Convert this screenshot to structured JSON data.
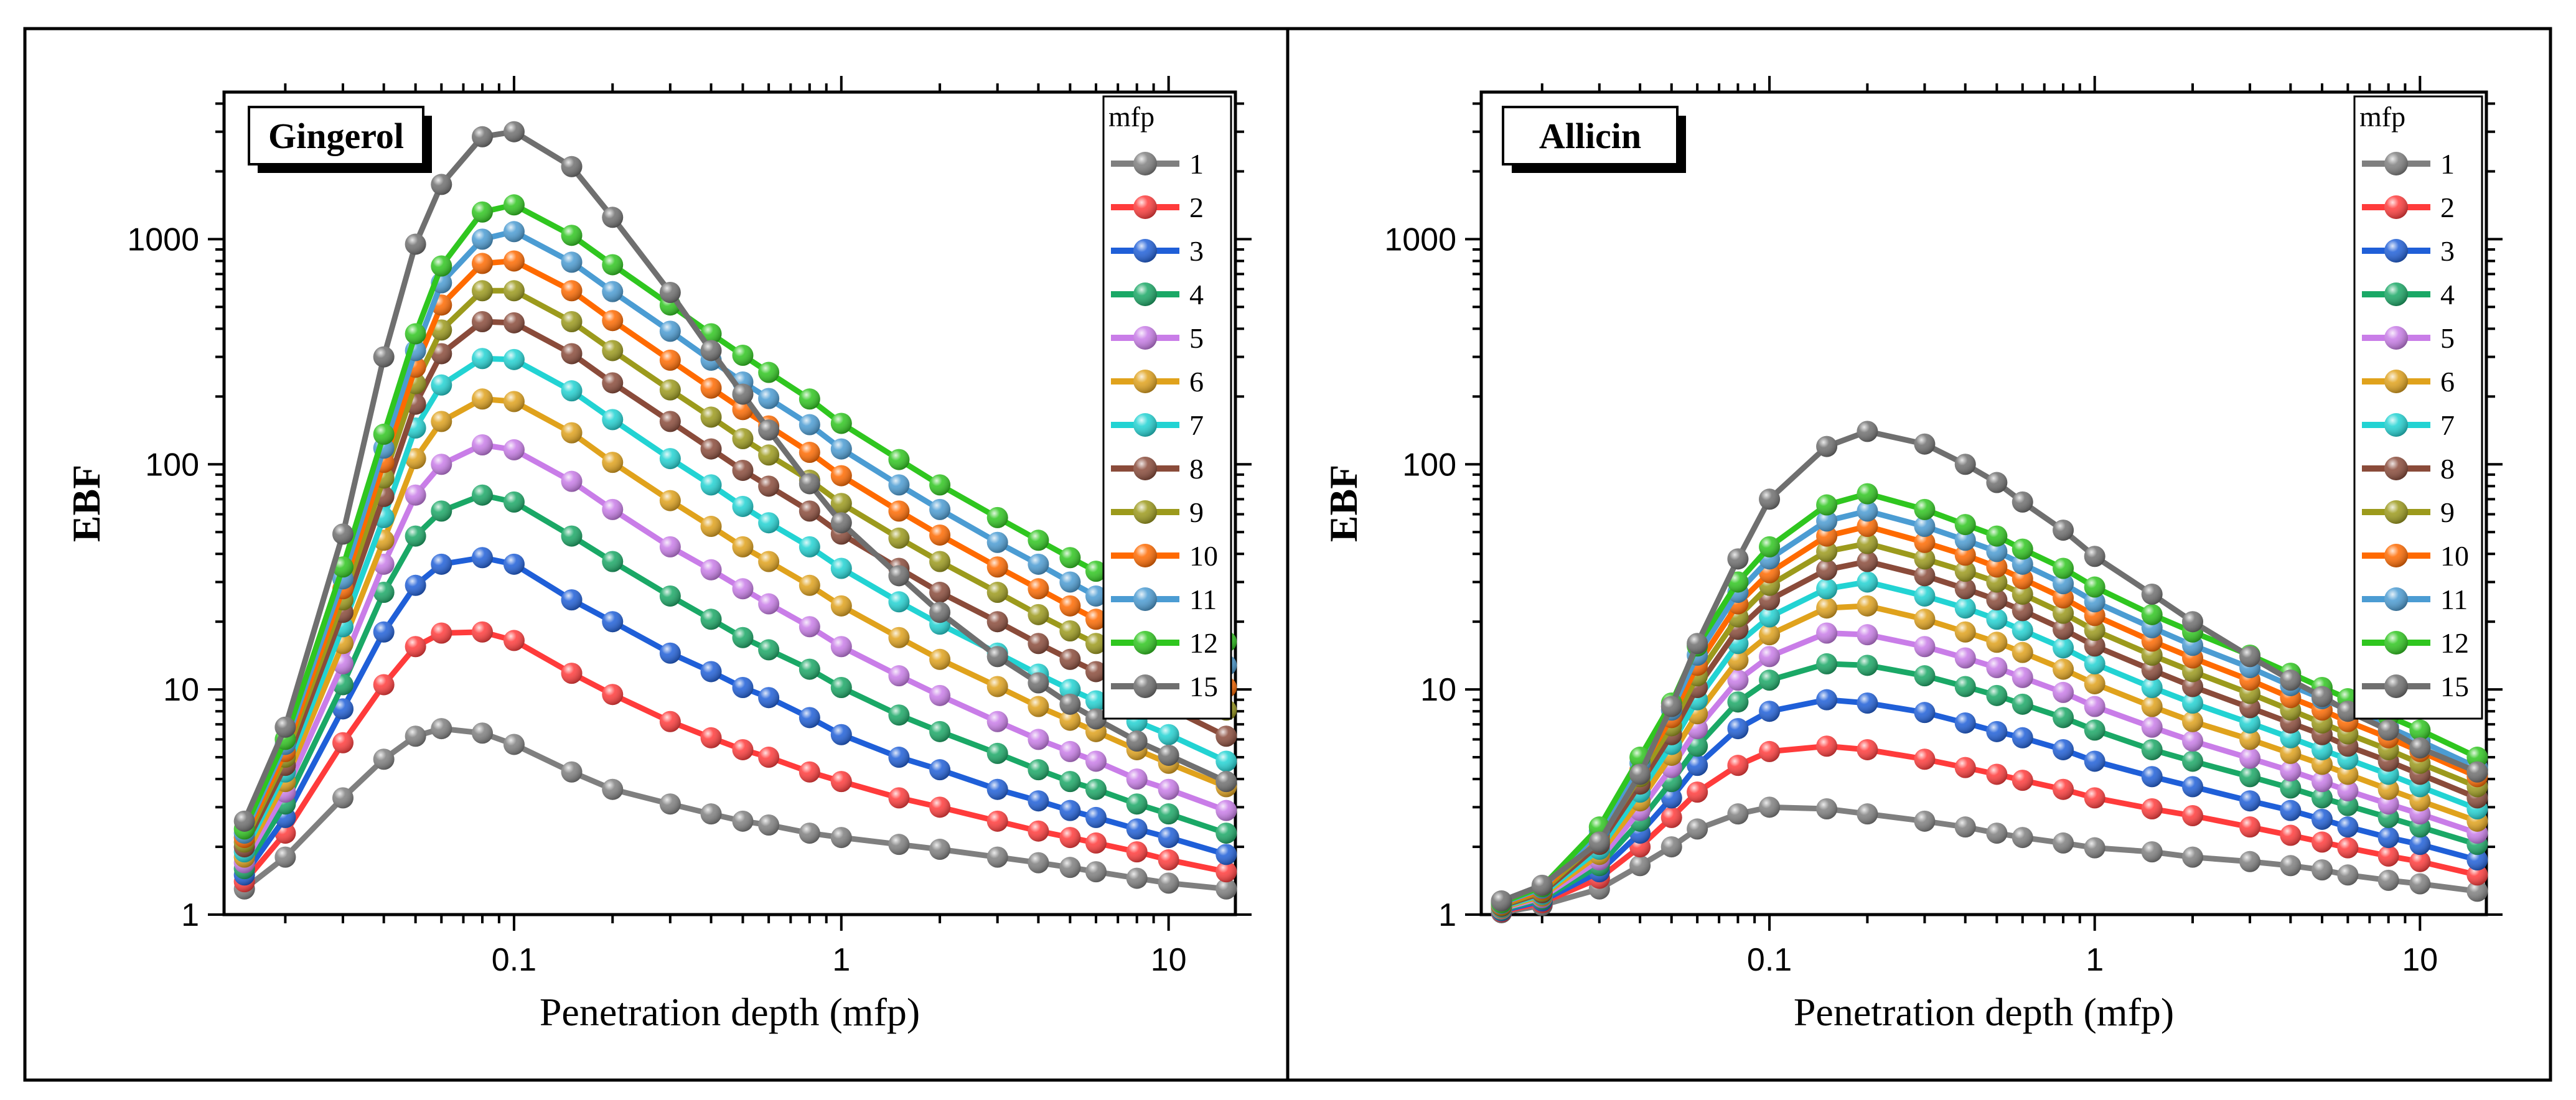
{
  "figure": {
    "panels": [
      "Gingerol",
      "Allicin"
    ]
  },
  "colors": {
    "1": "#7f7f7f",
    "2": "#ff3b3b",
    "3": "#1f5fd8",
    "4": "#1aa866",
    "5": "#c97de8",
    "6": "#e0a21c",
    "7": "#22d3d3",
    "8": "#8a4b3a",
    "9": "#9c9a1c",
    "10": "#ff6a00",
    "11": "#4b9cd3",
    "12": "#2fc61f",
    "15": "#6f6f6f"
  },
  "chart_data": [
    {
      "type": "line",
      "title": "Gingerol",
      "xlabel": "Penetration depth (mfp)",
      "ylabel": "EBF",
      "xscale": "log",
      "yscale": "log",
      "xlim": [
        0.013,
        16
      ],
      "ylim": [
        1,
        4500
      ],
      "xticks": [
        0.1,
        1,
        10
      ],
      "xtick_labels": [
        "0.1",
        "1",
        "10"
      ],
      "yticks": [
        1,
        10,
        100,
        1000
      ],
      "ytick_labels": [
        "1",
        "10",
        "100",
        "1000"
      ],
      "legend": {
        "title": "mfp",
        "placement": "top-right",
        "entries": [
          "1",
          "2",
          "3",
          "4",
          "5",
          "6",
          "7",
          "8",
          "9",
          "10",
          "11",
          "12",
          "15"
        ]
      },
      "x": [
        0.015,
        0.02,
        0.03,
        0.04,
        0.05,
        0.06,
        0.08,
        0.1,
        0.15,
        0.2,
        0.3,
        0.4,
        0.5,
        0.6,
        0.8,
        1,
        1.5,
        2,
        3,
        4,
        5,
        6,
        8,
        10,
        15
      ],
      "series": [
        {
          "name": "1",
          "values": [
            1.3,
            1.8,
            3.3,
            4.9,
            6.2,
            6.7,
            6.4,
            5.7,
            4.3,
            3.6,
            3.1,
            2.8,
            2.6,
            2.5,
            2.3,
            2.2,
            2.05,
            1.95,
            1.8,
            1.7,
            1.62,
            1.55,
            1.45,
            1.38,
            1.3
          ]
        },
        {
          "name": "2",
          "values": [
            1.4,
            2.3,
            5.8,
            10.5,
            15.5,
            17.8,
            18,
            16.5,
            11.8,
            9.5,
            7.2,
            6.1,
            5.4,
            5.0,
            4.3,
            3.9,
            3.3,
            3.0,
            2.6,
            2.35,
            2.2,
            2.08,
            1.9,
            1.75,
            1.55
          ]
        },
        {
          "name": "3",
          "values": [
            1.5,
            2.7,
            8.2,
            18,
            29,
            36,
            38.5,
            36,
            25,
            20,
            14.5,
            12,
            10.2,
            9.2,
            7.5,
            6.3,
            5.0,
            4.4,
            3.6,
            3.2,
            2.9,
            2.7,
            2.4,
            2.2,
            1.85
          ]
        },
        {
          "name": "4",
          "values": [
            1.6,
            3.1,
            10.5,
            27,
            48,
            62,
            73,
            68,
            48,
            37,
            26,
            20.5,
            17,
            15,
            12.3,
            10.2,
            7.7,
            6.5,
            5.2,
            4.4,
            3.9,
            3.6,
            3.1,
            2.8,
            2.3
          ]
        },
        {
          "name": "5",
          "values": [
            1.7,
            3.5,
            13,
            36,
            73,
            100,
            122,
            116,
            84,
            63,
            43,
            34,
            28,
            24,
            19,
            15.5,
            11.5,
            9.4,
            7.2,
            6.0,
            5.3,
            4.8,
            4.0,
            3.6,
            2.9
          ]
        },
        {
          "name": "6",
          "values": [
            1.8,
            3.9,
            16,
            46,
            106,
            155,
            195,
            190,
            138,
            102,
            69,
            53,
            43,
            37,
            29,
            23.5,
            17,
            13.6,
            10.3,
            8.4,
            7.3,
            6.5,
            5.4,
            4.7,
            3.7
          ]
        },
        {
          "name": "7",
          "values": [
            1.9,
            4.3,
            19,
            58,
            145,
            225,
            295,
            292,
            212,
            158,
            106,
            81,
            65,
            55,
            43,
            34.5,
            24.5,
            19.5,
            14.5,
            11.7,
            10,
            8.9,
            7.2,
            6.3,
            4.8
          ]
        },
        {
          "name": "8",
          "values": [
            2.0,
            4.6,
            22,
            72,
            185,
            310,
            430,
            425,
            310,
            230,
            155,
            117,
            94,
            80,
            62,
            49,
            34.5,
            27,
            20,
            16,
            13.6,
            12,
            9.7,
            8.3,
            6.2
          ]
        },
        {
          "name": "9",
          "values": [
            2.1,
            5.0,
            25,
            87,
            228,
            395,
            590,
            590,
            430,
            320,
            214,
            162,
            130,
            110,
            85,
            67,
            47,
            37,
            27,
            21.5,
            18.2,
            16,
            12.8,
            10.9,
            8.1
          ]
        },
        {
          "name": "10",
          "values": [
            2.2,
            5.3,
            28,
            102,
            270,
            510,
            780,
            800,
            590,
            435,
            290,
            218,
            175,
            148,
            113,
            89,
            62,
            48.5,
            35,
            28,
            23.5,
            20.5,
            16.3,
            13.8,
            10.2
          ]
        },
        {
          "name": "11",
          "values": [
            2.3,
            5.7,
            31,
            118,
            320,
            640,
            1000,
            1080,
            790,
            585,
            390,
            290,
            232,
            196,
            150,
            117,
            81,
            63,
            45,
            36,
            30,
            26,
            20.7,
            17.5,
            12.8
          ]
        },
        {
          "name": "12",
          "values": [
            2.4,
            6.0,
            35,
            136,
            380,
            760,
            1320,
            1420,
            1040,
            770,
            510,
            380,
            305,
            256,
            195,
            152,
            105,
            81,
            58,
            46,
            38.5,
            33.5,
            26.5,
            22.4,
            16.3
          ]
        },
        {
          "name": "15",
          "values": [
            2.6,
            6.8,
            49,
            300,
            950,
            1750,
            2850,
            3000,
            2100,
            1250,
            580,
            320,
            205,
            142,
            82,
            55,
            32,
            22,
            14,
            10.7,
            8.6,
            7.4,
            5.9,
            5.1,
            3.9
          ]
        }
      ]
    },
    {
      "type": "line",
      "title": "Allicin",
      "xlabel": "Penetration depth (mfp)",
      "ylabel": "EBF",
      "xscale": "log",
      "yscale": "log",
      "xlim": [
        0.013,
        16
      ],
      "ylim": [
        1,
        4500
      ],
      "xticks": [
        0.1,
        1,
        10
      ],
      "xtick_labels": [
        "0.1",
        "1",
        "10"
      ],
      "yticks": [
        1,
        10,
        100,
        1000
      ],
      "ytick_labels": [
        "1",
        "10",
        "100",
        "1000"
      ],
      "legend": {
        "title": "mfp",
        "placement": "top-right",
        "entries": [
          "1",
          "2",
          "3",
          "4",
          "5",
          "6",
          "7",
          "8",
          "9",
          "10",
          "11",
          "12",
          "15"
        ]
      },
      "x": [
        0.015,
        0.02,
        0.03,
        0.04,
        0.05,
        0.06,
        0.08,
        0.1,
        0.15,
        0.2,
        0.3,
        0.4,
        0.5,
        0.6,
        0.8,
        1,
        1.5,
        2,
        3,
        4,
        5,
        6,
        8,
        10,
        15
      ],
      "series": [
        {
          "name": "1",
          "values": [
            1.02,
            1.1,
            1.3,
            1.65,
            2.0,
            2.4,
            2.8,
            3.0,
            2.95,
            2.8,
            2.6,
            2.45,
            2.3,
            2.2,
            2.08,
            1.98,
            1.9,
            1.8,
            1.72,
            1.65,
            1.58,
            1.5,
            1.42,
            1.37,
            1.27
          ]
        },
        {
          "name": "2",
          "values": [
            1.03,
            1.13,
            1.45,
            2.0,
            2.7,
            3.5,
            4.6,
            5.3,
            5.6,
            5.4,
            4.9,
            4.5,
            4.2,
            3.95,
            3.6,
            3.3,
            2.95,
            2.75,
            2.45,
            2.25,
            2.1,
            1.98,
            1.82,
            1.72,
            1.5
          ]
        },
        {
          "name": "3",
          "values": [
            1.04,
            1.15,
            1.55,
            2.3,
            3.3,
            4.6,
            6.7,
            8.0,
            9.0,
            8.7,
            7.9,
            7.1,
            6.5,
            6.1,
            5.4,
            4.8,
            4.1,
            3.7,
            3.2,
            2.9,
            2.65,
            2.45,
            2.2,
            2.05,
            1.75
          ]
        },
        {
          "name": "4",
          "values": [
            1.05,
            1.17,
            1.65,
            2.6,
            3.9,
            5.6,
            8.8,
            11,
            13,
            12.8,
            11.5,
            10.3,
            9.4,
            8.6,
            7.5,
            6.6,
            5.4,
            4.8,
            4.1,
            3.65,
            3.3,
            3.05,
            2.7,
            2.45,
            2.05
          ]
        },
        {
          "name": "5",
          "values": [
            1.06,
            1.19,
            1.75,
            2.9,
            4.5,
            6.7,
            11,
            14,
            17.8,
            17.5,
            15.5,
            13.8,
            12.5,
            11.3,
            9.7,
            8.4,
            6.8,
            5.9,
            4.95,
            4.35,
            3.9,
            3.55,
            3.1,
            2.8,
            2.3
          ]
        },
        {
          "name": "6",
          "values": [
            1.07,
            1.21,
            1.85,
            3.2,
            5.1,
            7.8,
            13.5,
            17.5,
            23,
            23.5,
            20.5,
            18,
            16.2,
            14.6,
            12.3,
            10.6,
            8.4,
            7.2,
            6.0,
            5.2,
            4.65,
            4.2,
            3.6,
            3.2,
            2.6
          ]
        },
        {
          "name": "7",
          "values": [
            1.08,
            1.23,
            1.95,
            3.5,
            5.7,
            9.0,
            16,
            21,
            28,
            30,
            26,
            23,
            20.5,
            18.3,
            15.3,
            13,
            10.2,
            8.7,
            7.1,
            6.1,
            5.4,
            4.9,
            4.2,
            3.7,
            2.95
          ]
        },
        {
          "name": "8",
          "values": [
            1.09,
            1.25,
            2.05,
            3.8,
            6.3,
            10.2,
            18.5,
            25,
            34,
            37,
            32,
            28,
            25,
            22.4,
            18.5,
            15.6,
            12.2,
            10.3,
            8.3,
            7.1,
            6.3,
            5.6,
            4.8,
            4.2,
            3.3
          ]
        },
        {
          "name": "9",
          "values": [
            1.1,
            1.27,
            2.15,
            4.1,
            6.9,
            11.5,
            21,
            29,
            41,
            44.5,
            38,
            33.5,
            30,
            26.5,
            21.8,
            18.3,
            14.2,
            12,
            9.6,
            8.1,
            7.1,
            6.35,
            5.4,
            4.7,
            3.7
          ]
        },
        {
          "name": "10",
          "values": [
            1.11,
            1.29,
            2.25,
            4.4,
            7.5,
            12.8,
            24,
            33,
            48,
            53,
            45,
            39.5,
            35,
            31,
            25.5,
            21.3,
            16.4,
            13.8,
            11,
            9.2,
            8.1,
            7.2,
            6.1,
            5.3,
            4.1
          ]
        },
        {
          "name": "11",
          "values": [
            1.12,
            1.31,
            2.35,
            4.7,
            8.1,
            14.2,
            27,
            38,
            56,
            62,
            53,
            46,
            41,
            36,
            29.5,
            24.5,
            18.8,
            15.7,
            12.5,
            10.4,
            9.1,
            8.1,
            6.8,
            5.9,
            4.5
          ]
        },
        {
          "name": "12",
          "values": [
            1.13,
            1.33,
            2.45,
            5.0,
            8.7,
            15.6,
            30,
            43,
            66,
            74,
            63,
            54,
            48,
            42,
            34.5,
            28.5,
            21.5,
            18,
            14.2,
            11.8,
            10.2,
            9.1,
            7.6,
            6.6,
            5.0
          ]
        },
        {
          "name": "15",
          "values": [
            1.15,
            1.35,
            2.1,
            4.2,
            8.4,
            16,
            38,
            70,
            120,
            140,
            123,
            100,
            83,
            68,
            51,
            39,
            26.5,
            20,
            14,
            11,
            9.3,
            8.0,
            6.6,
            5.5,
            4.3
          ]
        }
      ]
    }
  ]
}
